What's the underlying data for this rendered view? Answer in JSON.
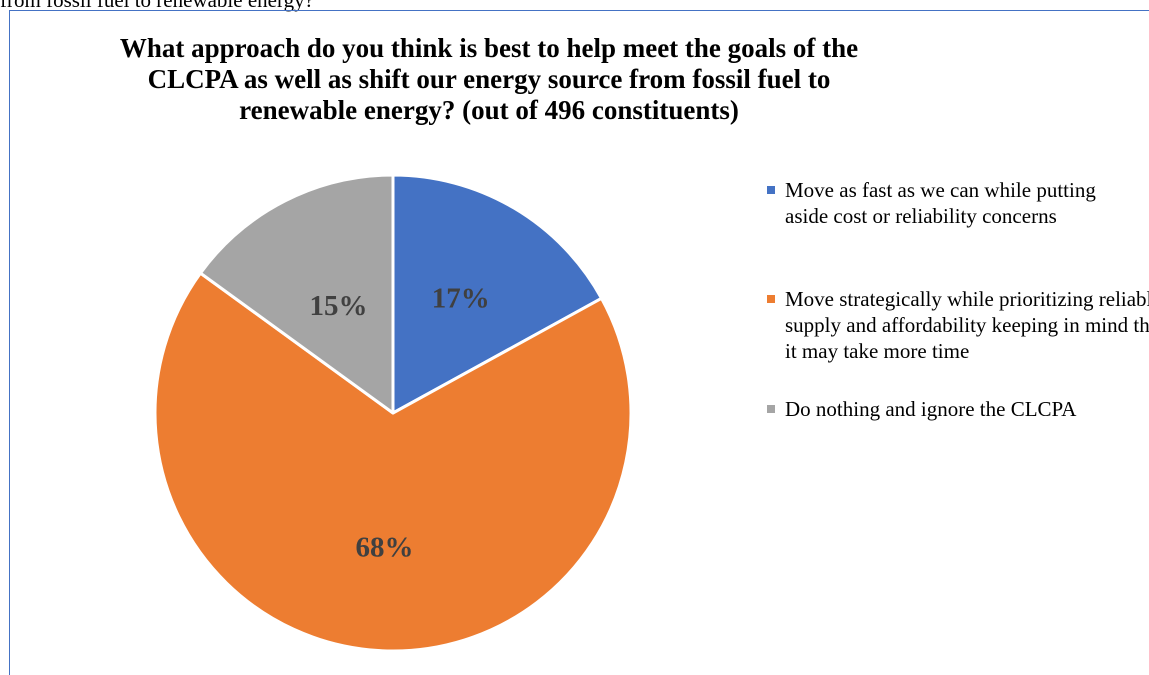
{
  "preceding_text": "from fossil fuel to renewable energy?",
  "colors": {
    "series": [
      "#4472c4",
      "#ed7d31",
      "#a5a5a5"
    ],
    "frame": "#4472c4",
    "label_text": "#404040"
  },
  "chart_data": {
    "type": "pie",
    "title": "What approach do you think is best to help meet the goals of the CLCPA as well as shift our energy source from fossil fuel to renewable energy? (out of 496 constituents)",
    "categories": [
      "Move as fast as we can while putting aside cost or reliability concerns",
      "Move strategically while prioritizing reliable supply and affordability keeping in mind that it may take more time",
      "Do nothing and ignore the CLCPA"
    ],
    "values": [
      17,
      68,
      15
    ],
    "data_labels": [
      "17%",
      "68%",
      "15%"
    ],
    "start_angle": "12 o'clock, clockwise",
    "legend_position": "right"
  }
}
